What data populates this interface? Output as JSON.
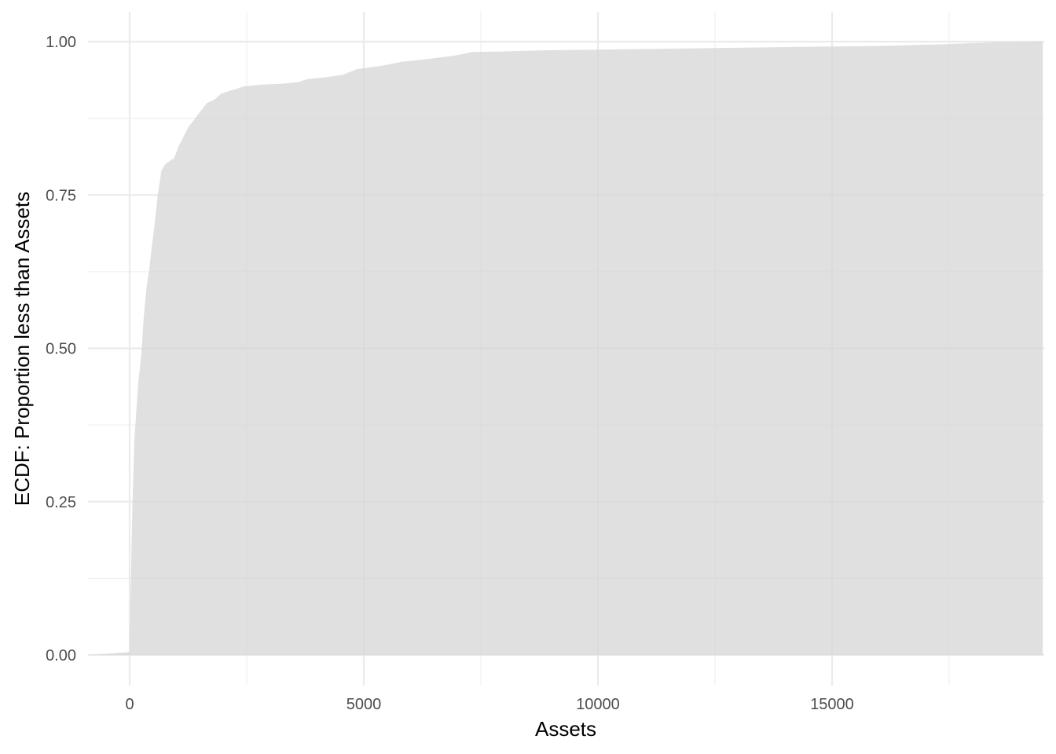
{
  "chart_data": {
    "type": "area",
    "title": "",
    "xlabel": "Assets",
    "ylabel": "ECDF: Proportion less than Assets",
    "xlim": [
      -880,
      19500
    ],
    "ylim": [
      -0.05,
      1.05
    ],
    "x_ticks": [
      0,
      5000,
      10000,
      15000
    ],
    "x_tick_labels": [
      "0",
      "5000",
      "10000",
      "15000"
    ],
    "y_ticks": [
      0,
      0.25,
      0.5,
      0.75,
      1
    ],
    "y_tick_labels": [
      "0.00",
      "0.25",
      "0.50",
      "0.75",
      "1.00"
    ],
    "grid": true,
    "fill_color": "#d6d6d6",
    "points": [
      [
        -880,
        0
      ],
      [
        0,
        0.005
      ],
      [
        20,
        0.1
      ],
      [
        60,
        0.25
      ],
      [
        100,
        0.35
      ],
      [
        180,
        0.44
      ],
      [
        250,
        0.49
      ],
      [
        300,
        0.55
      ],
      [
        360,
        0.6
      ],
      [
        420,
        0.63
      ],
      [
        480,
        0.67
      ],
      [
        530,
        0.7
      ],
      [
        600,
        0.75
      ],
      [
        680,
        0.79
      ],
      [
        760,
        0.8
      ],
      [
        850,
        0.805
      ],
      [
        950,
        0.81
      ],
      [
        1050,
        0.83
      ],
      [
        1150,
        0.845
      ],
      [
        1250,
        0.86
      ],
      [
        1400,
        0.875
      ],
      [
        1550,
        0.89
      ],
      [
        1650,
        0.9
      ],
      [
        1800,
        0.905
      ],
      [
        1950,
        0.915
      ],
      [
        2150,
        0.92
      ],
      [
        2450,
        0.927
      ],
      [
        2800,
        0.93
      ],
      [
        3200,
        0.931
      ],
      [
        3600,
        0.934
      ],
      [
        3800,
        0.939
      ],
      [
        4200,
        0.942
      ],
      [
        4550,
        0.946
      ],
      [
        4850,
        0.955
      ],
      [
        5400,
        0.961
      ],
      [
        5800,
        0.967
      ],
      [
        6400,
        0.972
      ],
      [
        7000,
        0.978
      ],
      [
        7300,
        0.983
      ],
      [
        8000,
        0.984
      ],
      [
        9000,
        0.986
      ],
      [
        10000,
        0.987
      ],
      [
        12000,
        0.989
      ],
      [
        14000,
        0.991
      ],
      [
        16000,
        0.993
      ],
      [
        17500,
        0.996
      ],
      [
        18500,
        0.999
      ],
      [
        19500,
        1
      ]
    ]
  }
}
